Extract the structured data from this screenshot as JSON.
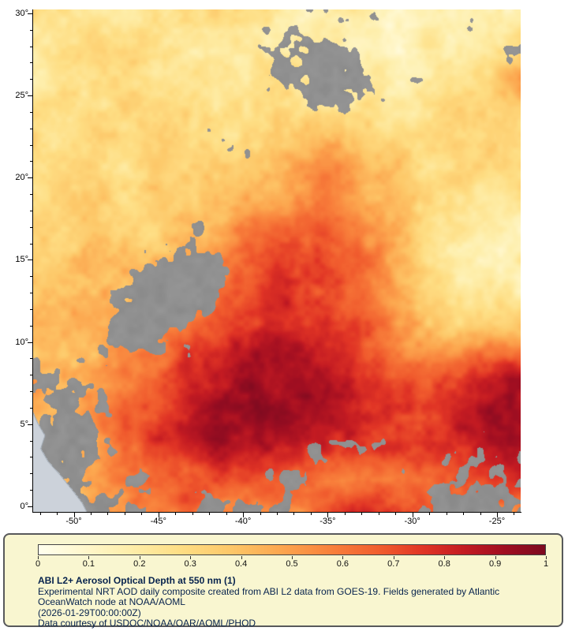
{
  "legend": {
    "title": "ABI L2+ Aerosol Optical Depth at 550 nm (1)",
    "description": "Experimental NRT AOD daily composite created from ABI L2 data from GOES-19. Fields generated by Atlantic OceanWatch node at NOAA/AOML",
    "timestamp": "(2026-01-29T00:00:00Z)",
    "courtesy": "Data courtesy of USDOC/NOAA/OAR/AOML/PHOD"
  },
  "chart_data": {
    "type": "heatmap",
    "title": "ABI L2+ Aerosol Optical Depth at 550 nm (1)",
    "lon_range": [
      -52.4,
      -23.6
    ],
    "lat_range": [
      -0.34,
      30.24
    ],
    "x_ticks": [
      {
        "value": -50,
        "label": "-50°"
      },
      {
        "value": -45,
        "label": "-45°"
      },
      {
        "value": -40,
        "label": "-40°"
      },
      {
        "value": -35,
        "label": "-35°"
      },
      {
        "value": -30,
        "label": "-30°"
      },
      {
        "value": -25,
        "label": "-25°"
      }
    ],
    "y_ticks": [
      {
        "value": 0,
        "label": "0°"
      },
      {
        "value": 5,
        "label": "5°"
      },
      {
        "value": 10,
        "label": "10°"
      },
      {
        "value": 15,
        "label": "15°"
      },
      {
        "value": 20,
        "label": "20°"
      },
      {
        "value": 25,
        "label": "25°"
      },
      {
        "value": 30,
        "label": "30°"
      }
    ],
    "minor_tick_step_deg": 1,
    "colorbar": {
      "range": [
        0,
        1
      ],
      "tick_labels": [
        "0",
        "0.1",
        "0.2",
        "0.3",
        "0.4",
        "0.5",
        "0.6",
        "0.7",
        "0.8",
        "0.9",
        "1"
      ],
      "stops": [
        [
          0.0,
          "#ffffee"
        ],
        [
          0.08,
          "#fff8d0"
        ],
        [
          0.18,
          "#feeeaa"
        ],
        [
          0.28,
          "#fede84"
        ],
        [
          0.38,
          "#fdc768"
        ],
        [
          0.48,
          "#fca54e"
        ],
        [
          0.58,
          "#f87f3b"
        ],
        [
          0.68,
          "#f05a2d"
        ],
        [
          0.76,
          "#e03425"
        ],
        [
          0.84,
          "#c31b22"
        ],
        [
          0.92,
          "#a00e21"
        ],
        [
          1.0,
          "#7d0a20"
        ]
      ]
    },
    "colors": {
      "missing_data_gray": "#8d8d8d",
      "land": "#ccd2da",
      "coastline": "#9aa4ae",
      "panel_bg": "#f9f6d0",
      "panel_border": "#58595b",
      "caption_text": "#06224d",
      "axis": "#000000"
    },
    "aod_grid_note": "Estimated AOD field, 16x16, row 0 = north (lat 30.2), col 0 = west (lon -52.4)",
    "aod_grid": [
      [
        0.25,
        0.28,
        0.25,
        0.22,
        0.25,
        0.28,
        0.25,
        0.22,
        0.2,
        0.18,
        0.15,
        0.15,
        0.15,
        0.15,
        0.18,
        0.2
      ],
      [
        0.22,
        0.25,
        0.3,
        0.28,
        0.25,
        0.22,
        0.25,
        0.22,
        0.2,
        0.18,
        0.15,
        0.15,
        0.15,
        0.18,
        0.2,
        0.3
      ],
      [
        0.2,
        0.22,
        0.28,
        0.3,
        0.28,
        0.25,
        0.25,
        0.28,
        0.25,
        0.2,
        0.18,
        0.18,
        0.2,
        0.22,
        0.3,
        0.55
      ],
      [
        0.22,
        0.25,
        0.28,
        0.3,
        0.32,
        0.3,
        0.28,
        0.3,
        0.3,
        0.28,
        0.25,
        0.22,
        0.25,
        0.28,
        0.3,
        0.35
      ],
      [
        0.25,
        0.28,
        0.3,
        0.32,
        0.35,
        0.32,
        0.3,
        0.32,
        0.38,
        0.45,
        0.42,
        0.35,
        0.3,
        0.28,
        0.3,
        0.32
      ],
      [
        0.28,
        0.3,
        0.32,
        0.3,
        0.32,
        0.35,
        0.35,
        0.4,
        0.5,
        0.55,
        0.5,
        0.4,
        0.32,
        0.28,
        0.25,
        0.28
      ],
      [
        0.3,
        0.32,
        0.35,
        0.32,
        0.35,
        0.38,
        0.42,
        0.5,
        0.55,
        0.6,
        0.55,
        0.42,
        0.3,
        0.22,
        0.2,
        0.22
      ],
      [
        0.32,
        0.35,
        0.38,
        0.35,
        0.38,
        0.42,
        0.5,
        0.6,
        0.65,
        0.68,
        0.6,
        0.45,
        0.3,
        0.18,
        0.15,
        0.18
      ],
      [
        0.35,
        0.38,
        0.4,
        0.42,
        0.45,
        0.5,
        0.6,
        0.7,
        0.75,
        0.72,
        0.62,
        0.5,
        0.35,
        0.2,
        0.15,
        0.17
      ],
      [
        0.38,
        0.42,
        0.45,
        0.45,
        0.5,
        0.6,
        0.7,
        0.78,
        0.8,
        0.75,
        0.68,
        0.55,
        0.42,
        0.3,
        0.28,
        0.32
      ],
      [
        0.4,
        0.45,
        0.48,
        0.5,
        0.58,
        0.7,
        0.8,
        0.85,
        0.85,
        0.8,
        0.72,
        0.62,
        0.52,
        0.45,
        0.5,
        0.6
      ],
      [
        0.45,
        0.48,
        0.52,
        0.55,
        0.65,
        0.78,
        0.88,
        0.92,
        0.9,
        0.85,
        0.78,
        0.7,
        0.68,
        0.75,
        0.85,
        0.92
      ],
      [
        0.42,
        0.48,
        0.55,
        0.6,
        0.72,
        0.85,
        0.92,
        0.95,
        0.92,
        0.88,
        0.82,
        0.78,
        0.78,
        0.82,
        0.88,
        0.93
      ],
      [
        0.4,
        0.45,
        0.55,
        0.65,
        0.78,
        0.88,
        0.92,
        0.9,
        0.85,
        0.8,
        0.75,
        0.72,
        0.75,
        0.8,
        0.88,
        0.95
      ],
      [
        0.35,
        0.4,
        0.5,
        0.6,
        0.68,
        0.72,
        0.75,
        0.7,
        0.65,
        0.6,
        0.58,
        0.6,
        0.62,
        0.65,
        0.7,
        0.75
      ],
      [
        0.3,
        0.35,
        0.45,
        0.55,
        0.6,
        0.62,
        0.6,
        0.55,
        0.55,
        0.75,
        0.8,
        0.75,
        0.65,
        0.6,
        0.55,
        0.5
      ]
    ],
    "cloud_grid_note": "Missing-data (cloud) fraction 0-1, same 16x16 layout; rendered as gray",
    "cloud_grid": [
      [
        0.0,
        0.0,
        0.0,
        0.0,
        0.0,
        0.0,
        0.3,
        0.5,
        0.5,
        0.4,
        0.5,
        0.3,
        0.2,
        0.3,
        0.4,
        0.3
      ],
      [
        0.0,
        0.0,
        0.0,
        0.0,
        0.0,
        0.1,
        0.3,
        0.6,
        0.7,
        0.6,
        0.5,
        0.3,
        0.2,
        0.2,
        0.3,
        0.4
      ],
      [
        0.0,
        0.0,
        0.0,
        0.0,
        0.0,
        0.1,
        0.2,
        0.4,
        0.6,
        0.7,
        0.6,
        0.4,
        0.3,
        0.2,
        0.3,
        0.3
      ],
      [
        0.0,
        0.0,
        0.0,
        0.1,
        0.2,
        0.2,
        0.3,
        0.3,
        0.4,
        0.6,
        0.5,
        0.4,
        0.2,
        0.1,
        0.1,
        0.2
      ],
      [
        0.0,
        0.0,
        0.1,
        0.1,
        0.2,
        0.3,
        0.4,
        0.4,
        0.3,
        0.2,
        0.2,
        0.2,
        0.1,
        0.1,
        0.1,
        0.1
      ],
      [
        0.1,
        0.1,
        0.1,
        0.2,
        0.3,
        0.4,
        0.5,
        0.4,
        0.2,
        0.1,
        0.1,
        0.1,
        0.1,
        0.0,
        0.0,
        0.0
      ],
      [
        0.1,
        0.1,
        0.2,
        0.3,
        0.4,
        0.5,
        0.4,
        0.3,
        0.2,
        0.1,
        0.1,
        0.1,
        0.0,
        0.0,
        0.0,
        0.0
      ],
      [
        0.2,
        0.2,
        0.3,
        0.4,
        0.6,
        0.5,
        0.3,
        0.2,
        0.2,
        0.1,
        0.1,
        0.1,
        0.0,
        0.0,
        0.0,
        0.0
      ],
      [
        0.2,
        0.3,
        0.4,
        0.6,
        0.7,
        0.6,
        0.4,
        0.2,
        0.1,
        0.1,
        0.1,
        0.1,
        0.0,
        0.0,
        0.0,
        0.0
      ],
      [
        0.3,
        0.3,
        0.5,
        0.7,
        0.8,
        0.6,
        0.3,
        0.1,
        0.1,
        0.0,
        0.0,
        0.0,
        0.0,
        0.0,
        0.0,
        0.0
      ],
      [
        0.4,
        0.4,
        0.5,
        0.6,
        0.6,
        0.4,
        0.2,
        0.1,
        0.0,
        0.0,
        0.0,
        0.0,
        0.0,
        0.0,
        0.0,
        0.1
      ],
      [
        0.5,
        0.4,
        0.4,
        0.4,
        0.3,
        0.2,
        0.1,
        0.0,
        0.0,
        0.0,
        0.0,
        0.0,
        0.1,
        0.1,
        0.1,
        0.1
      ],
      [
        0.5,
        0.5,
        0.4,
        0.3,
        0.2,
        0.1,
        0.0,
        0.0,
        0.0,
        0.0,
        0.1,
        0.1,
        0.1,
        0.1,
        0.1,
        0.0
      ],
      [
        0.6,
        0.6,
        0.5,
        0.3,
        0.2,
        0.1,
        0.1,
        0.1,
        0.2,
        0.5,
        0.6,
        0.5,
        0.4,
        0.4,
        0.3,
        0.3
      ],
      [
        0.7,
        0.7,
        0.6,
        0.5,
        0.4,
        0.4,
        0.3,
        0.4,
        0.5,
        0.5,
        0.5,
        0.4,
        0.4,
        0.5,
        0.5,
        0.5
      ],
      [
        0.8,
        0.8,
        0.7,
        0.6,
        0.5,
        0.5,
        0.5,
        0.5,
        0.4,
        0.3,
        0.3,
        0.4,
        0.5,
        0.6,
        0.6,
        0.7
      ]
    ],
    "land_polygon_lonlat": [
      [
        -52.45,
        5.8
      ],
      [
        -52.1,
        5.0
      ],
      [
        -51.7,
        4.3
      ],
      [
        -51.95,
        3.5
      ],
      [
        -51.5,
        2.7
      ],
      [
        -50.8,
        1.9
      ],
      [
        -50.1,
        1.0
      ],
      [
        -49.5,
        0.2
      ],
      [
        -49.2,
        -0.4
      ],
      [
        -52.45,
        -0.4
      ]
    ]
  }
}
